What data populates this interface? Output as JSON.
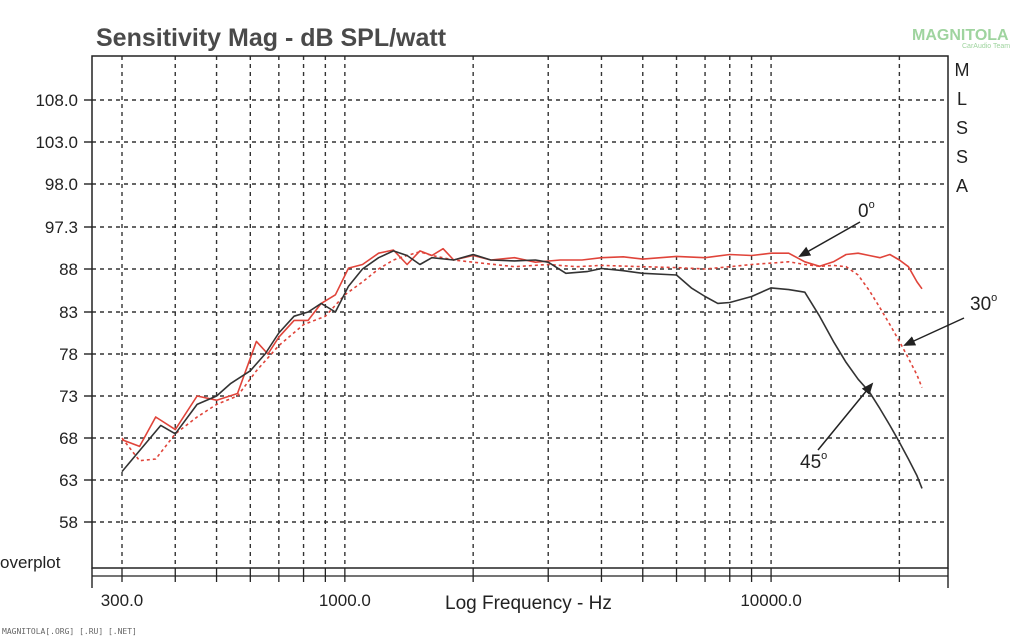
{
  "watermark": {
    "brand": "MAGNITOLA",
    "sub": "CarAudio Team"
  },
  "footer": "MAGNITOLA[.ORG] [.RU] [.NET]",
  "side_label": "overplot",
  "side_letters": [
    "M",
    "L",
    "S",
    "S",
    "A"
  ],
  "chart_data": {
    "type": "line",
    "title": "Sensitivity Mag - dB SPL/watt",
    "xlabel": "Log Frequency - Hz",
    "ylabel": "",
    "x_scale": "log",
    "xlim": [
      280,
      23000
    ],
    "x_ticks": [
      {
        "value": 300,
        "label": "300.0"
      },
      {
        "value": 1000,
        "label": "1000.0"
      },
      {
        "value": 10000,
        "label": "10000.0"
      }
    ],
    "y_ticks": [
      "108.0",
      "103.0",
      "98.0",
      "97.3",
      "88",
      "83",
      "78",
      "73",
      "68",
      "63",
      "58"
    ],
    "grid": true,
    "series": [
      {
        "name": "0°",
        "color": "#e0443a",
        "dash": "solid",
        "points": [
          [
            300,
            67.8
          ],
          [
            330,
            67
          ],
          [
            360,
            70.5
          ],
          [
            400,
            69
          ],
          [
            450,
            73
          ],
          [
            500,
            72.5
          ],
          [
            560,
            73.3
          ],
          [
            620,
            79.5
          ],
          [
            660,
            78
          ],
          [
            700,
            80
          ],
          [
            760,
            82
          ],
          [
            820,
            82
          ],
          [
            880,
            84
          ],
          [
            950,
            85
          ],
          [
            1020,
            88.2
          ],
          [
            1100,
            89
          ],
          [
            1200,
            91.5
          ],
          [
            1300,
            92.2
          ],
          [
            1400,
            89
          ],
          [
            1500,
            92
          ],
          [
            1600,
            91
          ],
          [
            1700,
            92.5
          ],
          [
            1800,
            90
          ],
          [
            2000,
            91
          ],
          [
            2200,
            90
          ],
          [
            2500,
            90.5
          ],
          [
            2800,
            89.5
          ],
          [
            3200,
            90
          ],
          [
            3600,
            90
          ],
          [
            4000,
            90.5
          ],
          [
            4500,
            90.7
          ],
          [
            5000,
            90.2
          ],
          [
            5500,
            90.5
          ],
          [
            6000,
            90.8
          ],
          [
            7000,
            90.5
          ],
          [
            8000,
            91.2
          ],
          [
            9000,
            91
          ],
          [
            10000,
            91.5
          ],
          [
            11000,
            91.5
          ],
          [
            12000,
            89.6
          ],
          [
            13000,
            88.6
          ],
          [
            14000,
            89.6
          ],
          [
            15000,
            91.2
          ],
          [
            16000,
            91.5
          ],
          [
            17000,
            91
          ],
          [
            18000,
            90.5
          ],
          [
            19000,
            91.2
          ],
          [
            20000,
            90
          ],
          [
            21000,
            88.5
          ],
          [
            22000,
            86.5
          ],
          [
            22600,
            85.7
          ]
        ]
      },
      {
        "name": "30°",
        "color": "#e0443a",
        "dash": "dashed",
        "points": [
          [
            300,
            68
          ],
          [
            330,
            65.3
          ],
          [
            360,
            65.5
          ],
          [
            400,
            68.5
          ],
          [
            450,
            70.5
          ],
          [
            500,
            72
          ],
          [
            560,
            73
          ],
          [
            620,
            76
          ],
          [
            700,
            79
          ],
          [
            800,
            81.5
          ],
          [
            900,
            82.5
          ],
          [
            1000,
            85
          ],
          [
            1100,
            86.5
          ],
          [
            1200,
            88
          ],
          [
            1300,
            90
          ],
          [
            1400,
            91
          ],
          [
            1500,
            91.8
          ],
          [
            1600,
            91
          ],
          [
            1800,
            90
          ],
          [
            2000,
            89.5
          ],
          [
            2500,
            88.5
          ],
          [
            3000,
            89
          ],
          [
            3500,
            88.5
          ],
          [
            4000,
            88.8
          ],
          [
            5000,
            88.5
          ],
          [
            6000,
            88.3
          ],
          [
            7000,
            88
          ],
          [
            8000,
            88.5
          ],
          [
            9000,
            89
          ],
          [
            10000,
            89.3
          ],
          [
            11000,
            89.6
          ],
          [
            12000,
            89
          ],
          [
            13000,
            88.6
          ],
          [
            14000,
            88.8
          ],
          [
            15000,
            88.5
          ],
          [
            16000,
            87.3
          ],
          [
            17000,
            85.5
          ],
          [
            18000,
            83.5
          ],
          [
            19000,
            81.5
          ],
          [
            20000,
            79.5
          ],
          [
            21000,
            77.5
          ],
          [
            22000,
            75.5
          ],
          [
            22600,
            74
          ]
        ]
      },
      {
        "name": "45°",
        "color": "#333333",
        "dash": "solid",
        "points": [
          [
            300,
            64
          ],
          [
            330,
            66.5
          ],
          [
            370,
            69.5
          ],
          [
            400,
            68.5
          ],
          [
            450,
            72
          ],
          [
            500,
            73
          ],
          [
            540,
            74.5
          ],
          [
            600,
            76
          ],
          [
            650,
            78
          ],
          [
            700,
            80.5
          ],
          [
            760,
            82.5
          ],
          [
            820,
            83
          ],
          [
            880,
            84
          ],
          [
            950,
            83
          ],
          [
            1020,
            86
          ],
          [
            1100,
            88
          ],
          [
            1200,
            90.5
          ],
          [
            1300,
            92
          ],
          [
            1400,
            91
          ],
          [
            1500,
            89
          ],
          [
            1600,
            90.5
          ],
          [
            1800,
            90
          ],
          [
            2000,
            91.2
          ],
          [
            2200,
            90
          ],
          [
            2500,
            89.8
          ],
          [
            2800,
            90
          ],
          [
            3000,
            89.5
          ],
          [
            3300,
            87.5
          ],
          [
            3700,
            87.7
          ],
          [
            4000,
            88.1
          ],
          [
            4500,
            87.8
          ],
          [
            5000,
            87.5
          ],
          [
            6000,
            87.3
          ],
          [
            6500,
            85.8
          ],
          [
            7000,
            84.8
          ],
          [
            7500,
            84
          ],
          [
            8000,
            84.1
          ],
          [
            9000,
            84.8
          ],
          [
            10000,
            85.8
          ],
          [
            11000,
            85.6
          ],
          [
            12000,
            85.3
          ],
          [
            13000,
            82.5
          ],
          [
            14000,
            79.5
          ],
          [
            15000,
            77
          ],
          [
            16000,
            75
          ],
          [
            17000,
            73.5
          ],
          [
            18000,
            71.5
          ],
          [
            19000,
            69.5
          ],
          [
            20000,
            67.5
          ],
          [
            21000,
            65.5
          ],
          [
            22000,
            63.5
          ],
          [
            22600,
            62
          ]
        ]
      }
    ],
    "annotations": [
      {
        "text": "0",
        "sup": "o",
        "target_series": "0°"
      },
      {
        "text": "30",
        "sup": "o",
        "target_series": "30°"
      },
      {
        "text": "45",
        "sup": "o",
        "target_series": "45°"
      }
    ]
  }
}
